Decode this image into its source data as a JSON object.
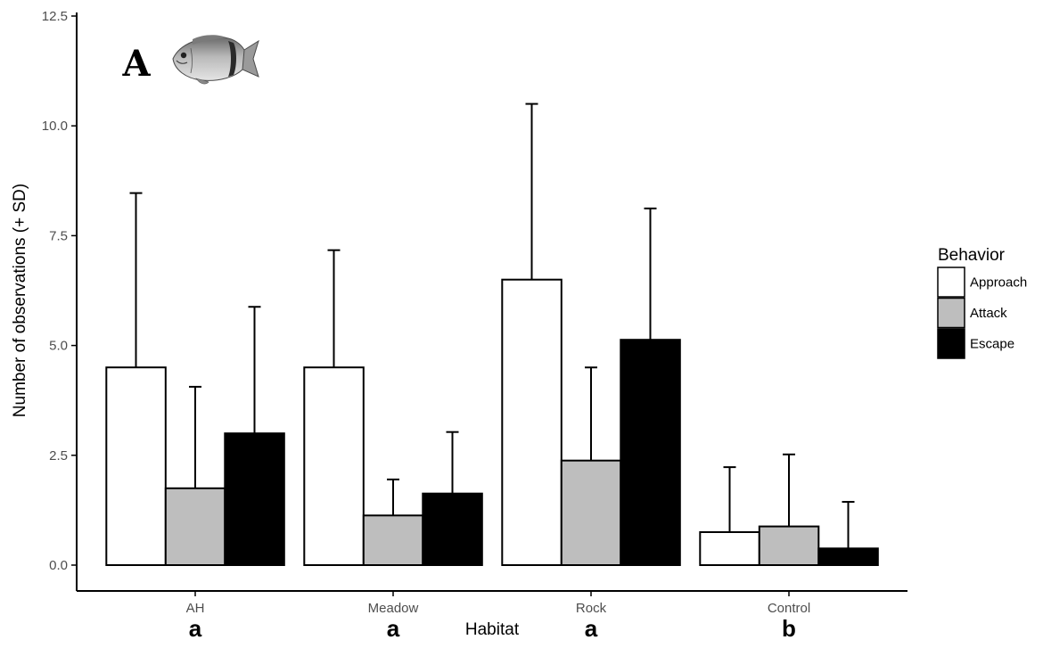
{
  "chart_data": {
    "type": "bar",
    "panel_label": "A",
    "xlabel": "Habitat",
    "ylabel": "Number of observations (+ SD)",
    "ylim": [
      0,
      12.5
    ],
    "yticks": [
      "0.0",
      "2.5",
      "5.0",
      "7.5",
      "10.0",
      "12.5"
    ],
    "ytick_values": [
      0,
      2.5,
      5,
      7.5,
      10,
      12.5
    ],
    "categories": [
      "AH",
      "Meadow",
      "Rock",
      "Control"
    ],
    "group_letters": [
      "a",
      "a",
      "a",
      "b"
    ],
    "series": [
      {
        "name": "Approach",
        "fill": "#ffffff",
        "values": [
          4.5,
          4.5,
          6.5,
          0.75
        ],
        "sd": [
          3.97,
          2.67,
          4.0,
          1.48
        ]
      },
      {
        "name": "Attack",
        "fill": "#bebebe",
        "values": [
          1.75,
          1.13,
          2.38,
          0.88
        ],
        "sd": [
          2.31,
          0.82,
          2.12,
          1.64
        ]
      },
      {
        "name": "Escape",
        "fill": "#000000",
        "values": [
          3.0,
          1.63,
          5.13,
          0.38
        ],
        "sd": [
          2.88,
          1.4,
          2.99,
          1.06
        ]
      }
    ],
    "legend": {
      "title": "Behavior",
      "position": "right"
    },
    "grid": false,
    "colors": {
      "bar_outline": "#000000",
      "axis": "#000000",
      "tick_label": "#4d4d4d",
      "text": "#000000"
    },
    "icon": "fish-icon"
  }
}
